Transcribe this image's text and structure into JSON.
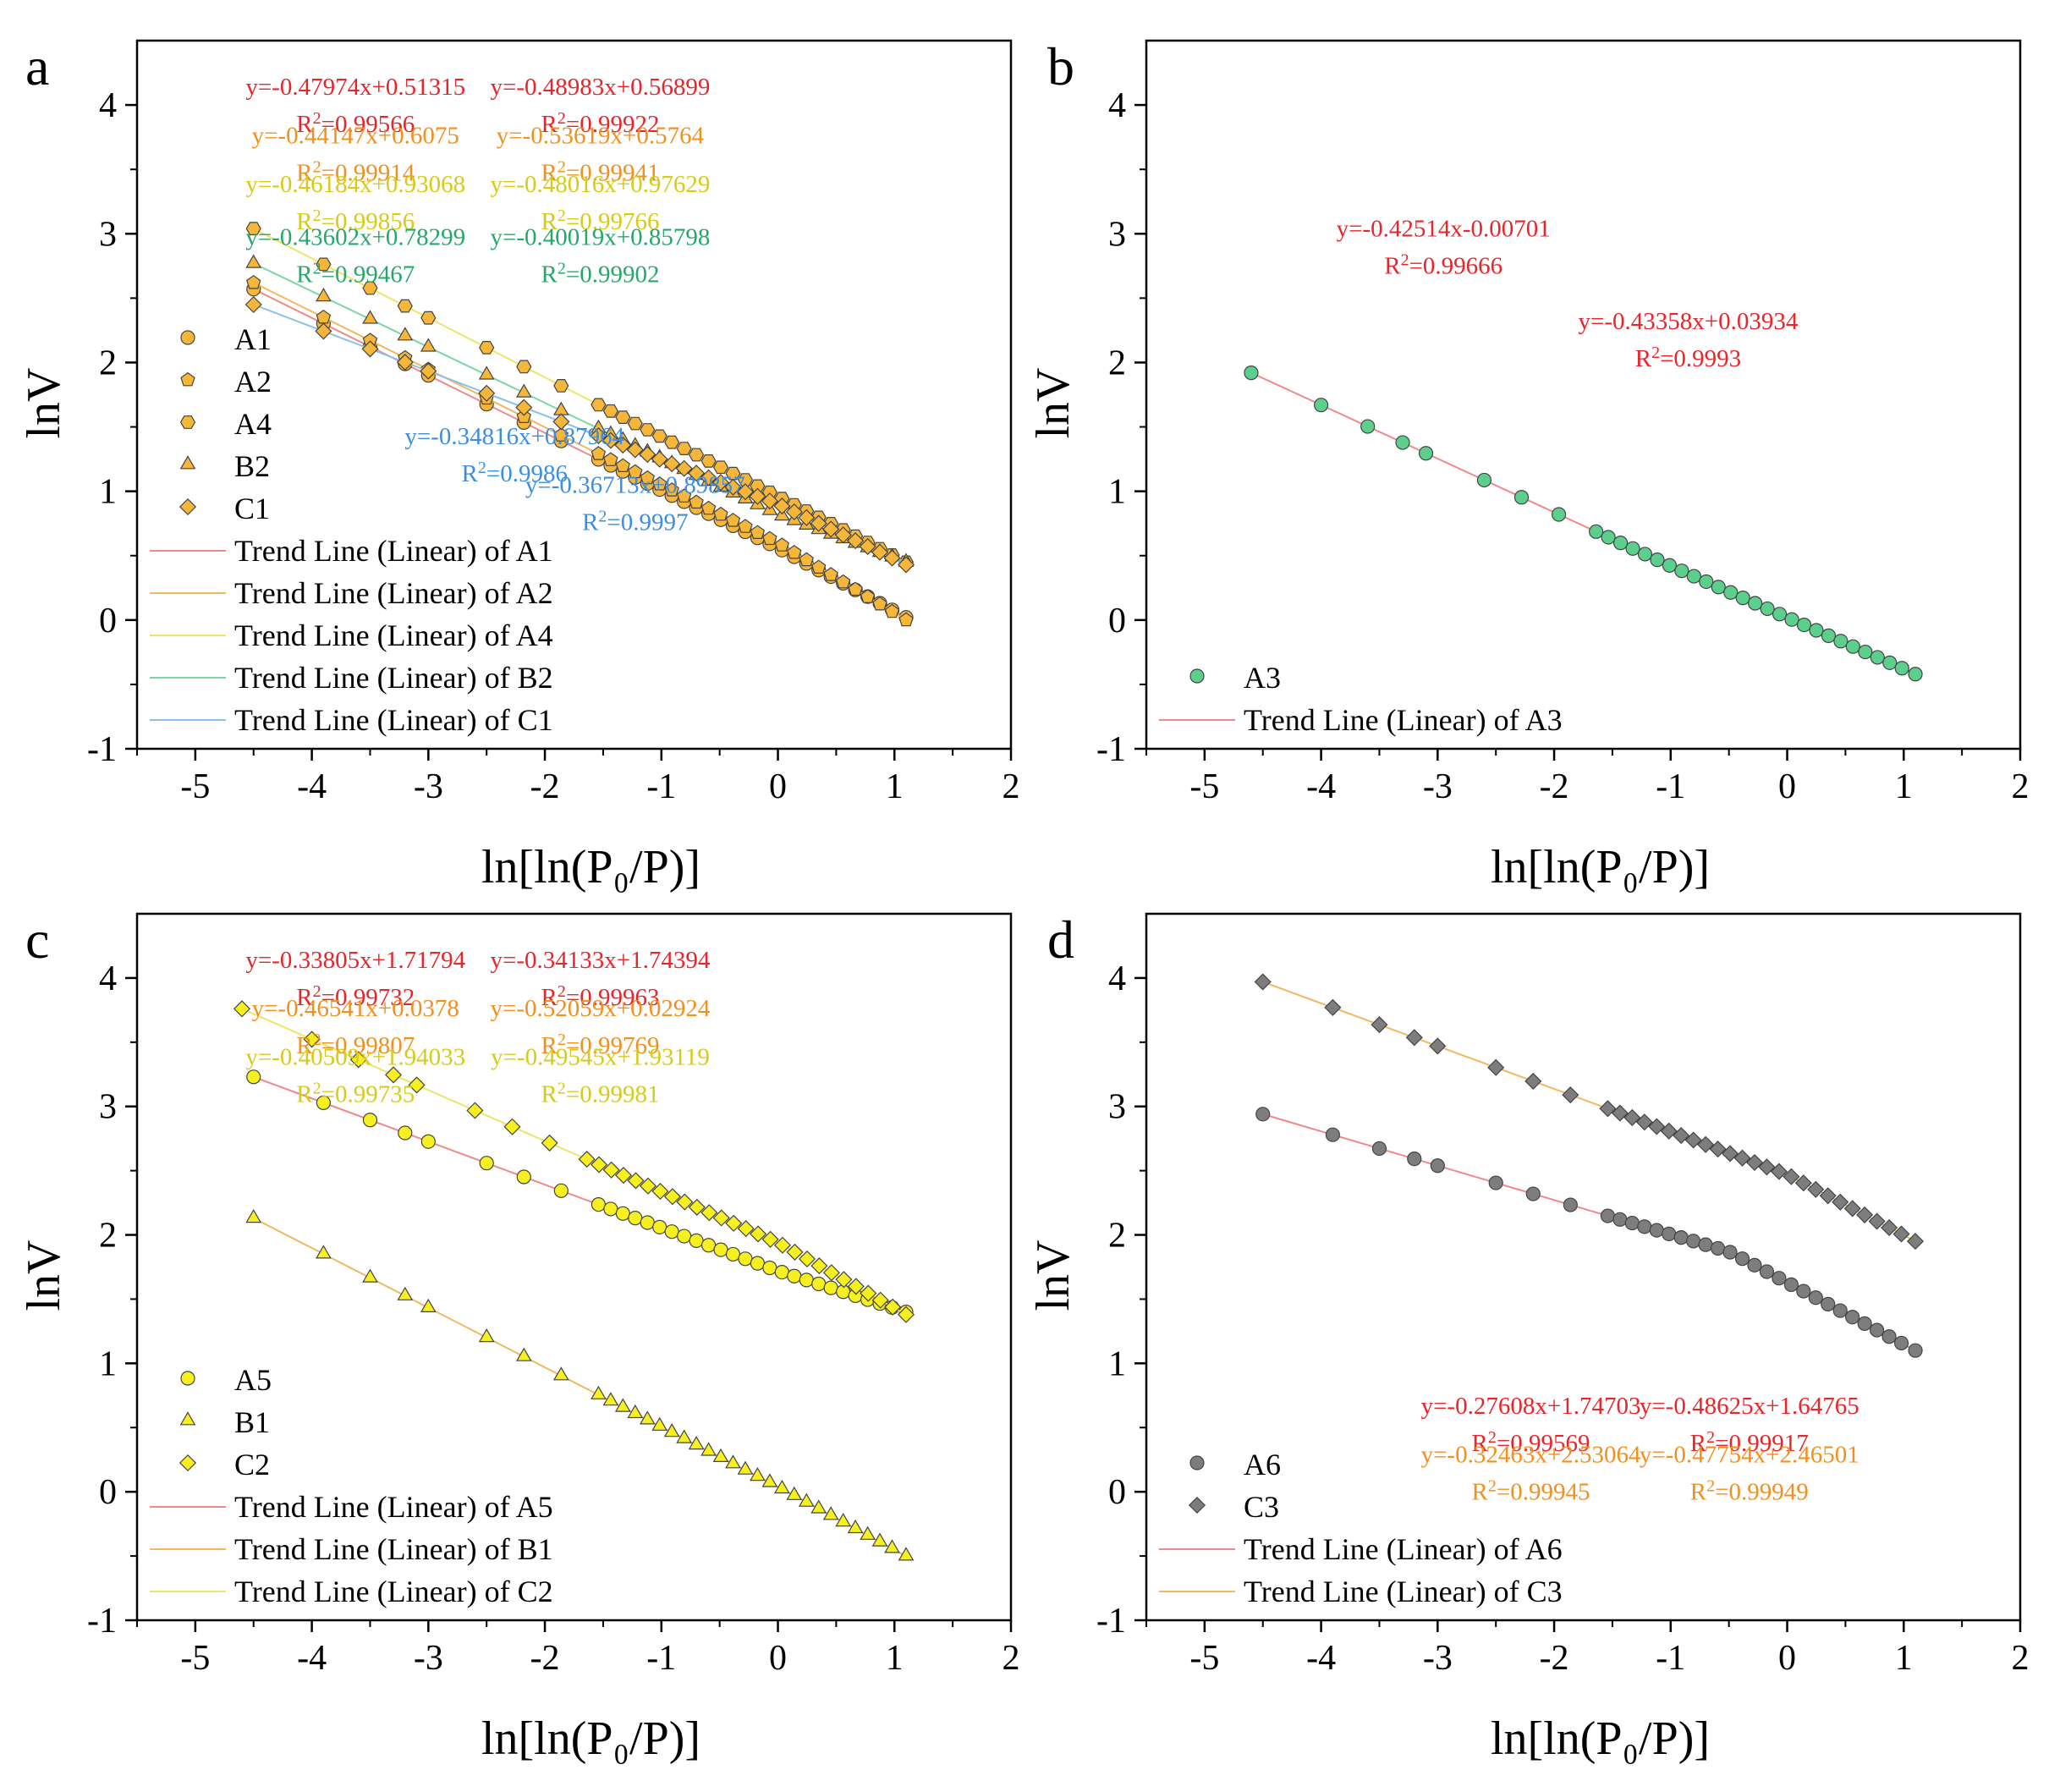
{
  "figure": {
    "colors": {
      "red": "#e8252a",
      "orange": "#f0901e",
      "yellow": "#d6cb18",
      "green": "#25a86a",
      "blue": "#3d8ee0",
      "marker_orange": "#f5b63a",
      "marker_green": "#5ccf8c",
      "marker_yellow": "#f7f020",
      "marker_gray": "#7d7d7d"
    }
  },
  "chart_data": [
    {
      "panel": "a",
      "type": "scatter",
      "xlabel": "ln[ln(P₀/P)]",
      "ylabel": "lnV",
      "xlim": [
        -5.5,
        2
      ],
      "ylim": [
        -1,
        4.5
      ],
      "xticks": [
        -5,
        -4,
        -3,
        -2,
        -1,
        0,
        1,
        2
      ],
      "yticks": [
        -1,
        0,
        1,
        2,
        3,
        4
      ],
      "legend_position": "bottom-left",
      "series": [
        {
          "name": "A1",
          "marker": "circle",
          "color": "#f5b63a",
          "trend_color": "#f08a8a",
          "x0": -4.5,
          "y0": 2.57,
          "x_break": 0.0,
          "y_break": 0.56,
          "x1": 1.1,
          "y1": 0.02
        },
        {
          "name": "A2",
          "marker": "pentagon",
          "color": "#f5b63a",
          "trend_color": "#f2b860",
          "x0": -4.5,
          "y0": 2.62,
          "x_break": 0.0,
          "y_break": 0.6,
          "x1": 1.1,
          "y1": 0.0
        },
        {
          "name": "A4",
          "marker": "hexagon",
          "color": "#f5b63a",
          "trend_color": "#ece56a",
          "x0": -4.5,
          "y0": 3.04,
          "x_break": 0.0,
          "y_break": 0.96,
          "x1": 1.1,
          "y1": 0.45
        },
        {
          "name": "B2",
          "marker": "triangle",
          "color": "#f5b63a",
          "trend_color": "#7ad6a6",
          "x0": -4.5,
          "y0": 2.77,
          "x_break": 0.0,
          "y_break": 0.82,
          "x1": 1.1,
          "y1": 0.45
        },
        {
          "name": "C1",
          "marker": "diamond",
          "color": "#f5b63a",
          "trend_color": "#8cc0ec",
          "x0": -4.5,
          "y0": 2.45,
          "x_break": 0.0,
          "y_break": 0.9,
          "x1": 1.1,
          "y1": 0.43
        }
      ],
      "legend_trend_labels": [
        "Trend Line (Linear) of A1",
        "Trend Line (Linear) of A2",
        "Trend Line (Linear) of A4",
        "Trend Line (Linear) of B2",
        "Trend Line (Linear) of C1"
      ],
      "annotations": [
        {
          "eq": "y=-0.47974x+0.51315",
          "r2": "0.99566",
          "color": "red",
          "dx": 0.125,
          "dy": 0.04
        },
        {
          "eq": "y=-0.48983x+0.56899",
          "r2": "0.99922",
          "color": "red",
          "dx": 0.265,
          "dy": 0.04
        },
        {
          "eq": "y=-0.44147x+0.6075",
          "r2": "0.99914",
          "color": "orange",
          "dx": 0.125,
          "dy": 0.095
        },
        {
          "eq": "y=-0.53619x+0.5764",
          "r2": "0.99941",
          "color": "orange",
          "dx": 0.265,
          "dy": 0.095
        },
        {
          "eq": "y=-0.46184x+0.93068",
          "r2": "0.99856",
          "color": "yellow",
          "dx": 0.125,
          "dy": 0.15
        },
        {
          "eq": "y=-0.48016x+0.97629",
          "r2": "0.99766",
          "color": "yellow",
          "dx": 0.265,
          "dy": 0.15
        },
        {
          "eq": "y=-0.43602x+0.78299",
          "r2": "0.99467",
          "color": "green",
          "dx": 0.125,
          "dy": 0.21
        },
        {
          "eq": "y=-0.40019x+0.85798",
          "r2": "0.99902",
          "color": "green",
          "dx": 0.265,
          "dy": 0.21
        },
        {
          "eq": "y=-0.34816x+0.87964",
          "r2": "0.9986",
          "color": "blue",
          "dx": 0.216,
          "dy": 0.435
        },
        {
          "eq": "y=-0.36713x+0.89857",
          "r2": "0.9997",
          "color": "blue",
          "dx": 0.285,
          "dy": 0.49
        }
      ]
    },
    {
      "panel": "b",
      "type": "scatter",
      "xlabel": "ln[ln(P₀/P)]",
      "ylabel": "lnV",
      "xlim": [
        -5.5,
        2
      ],
      "ylim": [
        -1,
        4.5
      ],
      "xticks": [
        -5,
        -4,
        -3,
        -2,
        -1,
        0,
        1,
        2
      ],
      "yticks": [
        -1,
        0,
        1,
        2,
        3,
        4
      ],
      "legend_position": "bottom-left",
      "series": [
        {
          "name": "A3",
          "marker": "circle",
          "color": "#5ccf8c",
          "trend_color": "#f08a8a",
          "x0": -4.6,
          "y0": 1.92,
          "x_break": -1.0,
          "y_break": 0.42,
          "x1": 1.1,
          "y1": -0.42
        }
      ],
      "legend_trend_labels": [
        "Trend Line (Linear) of A3"
      ],
      "annotations": [
        {
          "eq": "y=-0.42514x-0.00701",
          "r2": "0.99666",
          "color": "red",
          "dx": 0.17,
          "dy": 0.2
        },
        {
          "eq": "y=-0.43358x+0.03934",
          "r2": "0.9993",
          "color": "red",
          "dx": 0.31,
          "dy": 0.305
        }
      ]
    },
    {
      "panel": "c",
      "type": "scatter",
      "xlabel": "ln[ln(P₀/P)]",
      "ylabel": "lnV",
      "xlim": [
        -5.5,
        2
      ],
      "ylim": [
        -1,
        4.5
      ],
      "xticks": [
        -5,
        -4,
        -3,
        -2,
        -1,
        0,
        1,
        2
      ],
      "yticks": [
        -1,
        0,
        1,
        2,
        3,
        4
      ],
      "legend_position": "bottom-left",
      "series": [
        {
          "name": "A5",
          "marker": "circle",
          "color": "#f7f020",
          "trend_color": "#f08a8a",
          "x0": -4.5,
          "y0": 3.23,
          "x_break": 0.0,
          "y_break": 1.72,
          "x1": 1.1,
          "y1": 1.4
        },
        {
          "name": "B1",
          "marker": "triangle",
          "color": "#f7f020",
          "trend_color": "#f2b860",
          "x0": -4.5,
          "y0": 2.13,
          "x_break": 0.0,
          "y_break": 0.04,
          "x1": 1.1,
          "y1": -0.5
        },
        {
          "name": "C2",
          "marker": "diamond",
          "color": "#f7f020",
          "trend_color": "#ece56a",
          "x0": -4.6,
          "y0": 3.76,
          "x_break": 0.0,
          "y_break": 1.94,
          "x1": 1.1,
          "y1": 1.38
        }
      ],
      "legend_trend_labels": [
        "Trend Line (Linear) of A5",
        "Trend Line (Linear) of B1",
        "Trend Line (Linear) of C2"
      ],
      "annotations": [
        {
          "eq": "y=-0.33805x+1.71794",
          "r2": "0.99732",
          "color": "red",
          "dx": 0.125,
          "dy": 0.04
        },
        {
          "eq": "y=-0.34133x+1.74394",
          "r2": "0.99963",
          "color": "red",
          "dx": 0.265,
          "dy": 0.04
        },
        {
          "eq": "y=-0.46541x+0.0378",
          "r2": "0.99807",
          "color": "orange",
          "dx": 0.125,
          "dy": 0.095
        },
        {
          "eq": "y=-0.52059x+0.02924",
          "r2": "0.99769",
          "color": "orange",
          "dx": 0.265,
          "dy": 0.095
        },
        {
          "eq": "y=-0.40509x+1.94033",
          "r2": "0.99735",
          "color": "yellow",
          "dx": 0.125,
          "dy": 0.15
        },
        {
          "eq": "y=-0.49545x+1.93119",
          "r2": "0.99981",
          "color": "yellow",
          "dx": 0.265,
          "dy": 0.15
        }
      ]
    },
    {
      "panel": "d",
      "type": "scatter",
      "xlabel": "ln[ln(P₀/P)]",
      "ylabel": "lnV",
      "xlim": [
        -5.5,
        2
      ],
      "ylim": [
        -1,
        4.5
      ],
      "xticks": [
        -5,
        -4,
        -3,
        -2,
        -1,
        0,
        1,
        2
      ],
      "yticks": [
        -1,
        0,
        1,
        2,
        3,
        4
      ],
      "legend_position": "bottom-left",
      "series": [
        {
          "name": "A6",
          "marker": "circle",
          "color": "#7d7d7d",
          "trend_color": "#f08a8a",
          "x0": -4.5,
          "y0": 2.94,
          "x_break": -0.5,
          "y_break": 1.87,
          "x1": 1.1,
          "y1": 1.1
        },
        {
          "name": "C3",
          "marker": "diamond",
          "color": "#7d7d7d",
          "trend_color": "#f2b860",
          "x0": -4.5,
          "y0": 3.97,
          "x_break": 0.0,
          "y_break": 2.47,
          "x1": 1.1,
          "y1": 1.95
        }
      ],
      "legend_trend_labels": [
        "Trend Line (Linear) of A6",
        "Trend Line (Linear) of C3"
      ],
      "annotations": [
        {
          "eq": "y=-0.27608x+1.74703",
          "r2": "0.99569",
          "color": "red",
          "dx": 0.22,
          "dy": 0.545
        },
        {
          "eq": "y=-0.48625x+1.64765",
          "r2": "0.99917",
          "color": "red",
          "dx": 0.345,
          "dy": 0.545
        },
        {
          "eq": "y=-0.32463x+2.53064",
          "r2": "0.99945",
          "color": "orange",
          "dx": 0.22,
          "dy": 0.6
        },
        {
          "eq": "y=-0.47754x+2.46501",
          "r2": "0.99949",
          "color": "orange",
          "dx": 0.345,
          "dy": 0.6
        }
      ]
    }
  ]
}
